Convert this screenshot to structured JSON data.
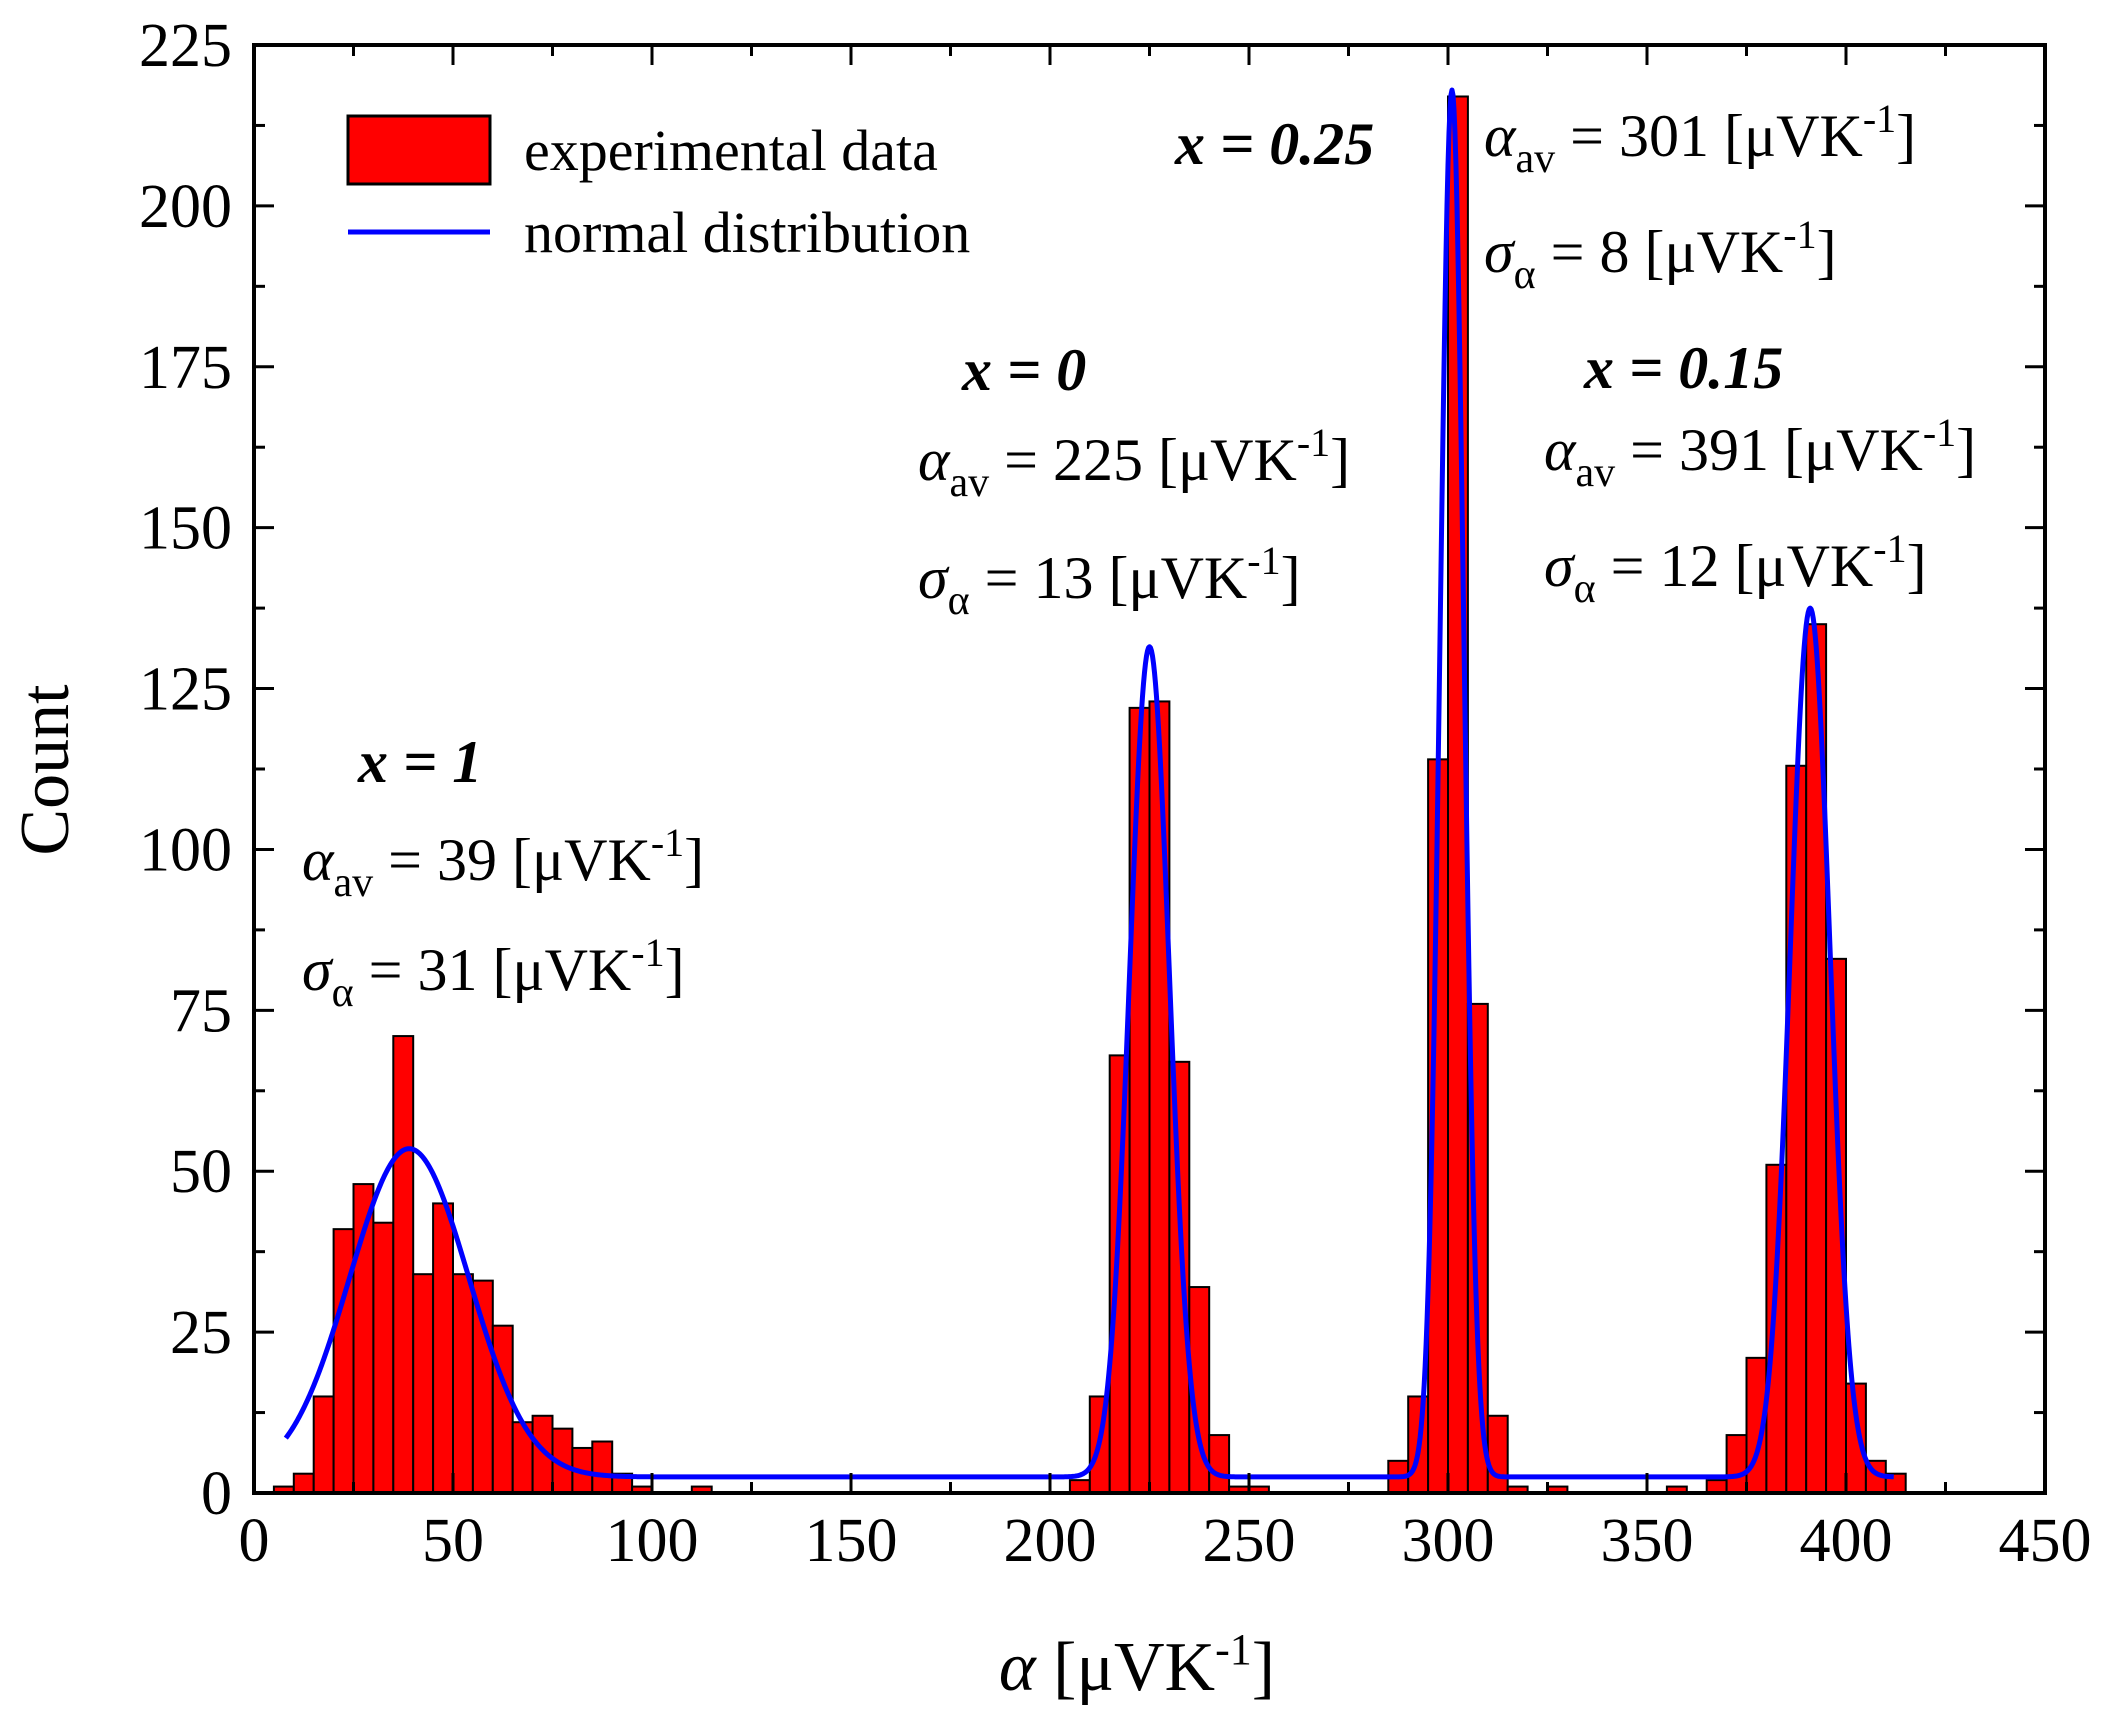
{
  "chart_data": {
    "type": "bar",
    "xlabel": {
      "symbol": "α",
      "unit_open": " [μVK",
      "unit_sup": "-1",
      "unit_close": "]"
    },
    "ylabel": "Count",
    "xlim": [
      0,
      450
    ],
    "ylim": [
      0,
      225
    ],
    "x_ticks": [
      0,
      50,
      100,
      150,
      200,
      250,
      300,
      350,
      400,
      450
    ],
    "y_ticks": [
      0,
      25,
      50,
      75,
      100,
      125,
      150,
      175,
      200,
      225
    ],
    "x_tick_labels": [
      "0",
      "50",
      "100",
      "150",
      "200",
      "250",
      "300",
      "350",
      "400",
      "450"
    ],
    "y_tick_labels": [
      "0",
      "25",
      "50",
      "75",
      "100",
      "125",
      "150",
      "175",
      "200",
      "225"
    ],
    "colors": {
      "bars": "#ff0000",
      "bar_edge": "#000000",
      "curve": "#0000ff"
    },
    "legend": {
      "placement": "top-left",
      "entries": [
        {
          "label": "experimental data",
          "kind": "bar"
        },
        {
          "label": "normal distribution",
          "kind": "line"
        }
      ]
    },
    "histogram": {
      "name": "experimental data",
      "bin_width": 5,
      "bins": [
        {
          "x0": 5,
          "count": 1
        },
        {
          "x0": 10,
          "count": 3
        },
        {
          "x0": 15,
          "count": 15
        },
        {
          "x0": 20,
          "count": 41
        },
        {
          "x0": 25,
          "count": 48
        },
        {
          "x0": 30,
          "count": 42
        },
        {
          "x0": 35,
          "count": 71
        },
        {
          "x0": 40,
          "count": 34
        },
        {
          "x0": 45,
          "count": 45
        },
        {
          "x0": 50,
          "count": 34
        },
        {
          "x0": 55,
          "count": 33
        },
        {
          "x0": 60,
          "count": 26
        },
        {
          "x0": 65,
          "count": 11
        },
        {
          "x0": 70,
          "count": 12
        },
        {
          "x0": 75,
          "count": 10
        },
        {
          "x0": 80,
          "count": 7
        },
        {
          "x0": 85,
          "count": 8
        },
        {
          "x0": 90,
          "count": 3
        },
        {
          "x0": 95,
          "count": 1
        },
        {
          "x0": 110,
          "count": 1
        },
        {
          "x0": 205,
          "count": 2
        },
        {
          "x0": 210,
          "count": 15
        },
        {
          "x0": 215,
          "count": 68
        },
        {
          "x0": 220,
          "count": 122
        },
        {
          "x0": 225,
          "count": 123
        },
        {
          "x0": 230,
          "count": 67
        },
        {
          "x0": 235,
          "count": 32
        },
        {
          "x0": 240,
          "count": 9
        },
        {
          "x0": 245,
          "count": 1
        },
        {
          "x0": 250,
          "count": 1
        },
        {
          "x0": 285,
          "count": 5
        },
        {
          "x0": 290,
          "count": 15
        },
        {
          "x0": 295,
          "count": 114
        },
        {
          "x0": 300,
          "count": 217
        },
        {
          "x0": 305,
          "count": 76
        },
        {
          "x0": 310,
          "count": 12
        },
        {
          "x0": 315,
          "count": 1
        },
        {
          "x0": 325,
          "count": 1
        },
        {
          "x0": 355,
          "count": 1
        },
        {
          "x0": 365,
          "count": 2
        },
        {
          "x0": 370,
          "count": 9
        },
        {
          "x0": 375,
          "count": 21
        },
        {
          "x0": 380,
          "count": 51
        },
        {
          "x0": 385,
          "count": 113
        },
        {
          "x0": 390,
          "count": 135
        },
        {
          "x0": 395,
          "count": 83
        },
        {
          "x0": 400,
          "count": 17
        },
        {
          "x0": 405,
          "count": 5
        },
        {
          "x0": 410,
          "count": 3
        }
      ]
    },
    "normal_fit": {
      "name": "normal distribution",
      "x_range": [
        8,
        412
      ],
      "baseline": 2.5,
      "components": [
        {
          "mean": 39,
          "sigma": 15,
          "peak": 53.5
        },
        {
          "mean": 225,
          "sigma": 5,
          "peak": 131.5
        },
        {
          "mean": 301,
          "sigma": 3,
          "peak": 218
        },
        {
          "mean": 391,
          "sigma": 5,
          "peak": 137.5
        }
      ]
    },
    "annotations": [
      {
        "id": "x1",
        "x_value": "1",
        "alpha_av": "39",
        "sigma_alpha": "31"
      },
      {
        "id": "x0",
        "x_value": "0",
        "alpha_av": "225",
        "sigma_alpha": "13"
      },
      {
        "id": "x025",
        "x_value": "0.25",
        "alpha_av": "301",
        "sigma_alpha": "8"
      },
      {
        "id": "x015",
        "x_value": "0.15",
        "alpha_av": "391",
        "sigma_alpha": "12"
      }
    ]
  }
}
